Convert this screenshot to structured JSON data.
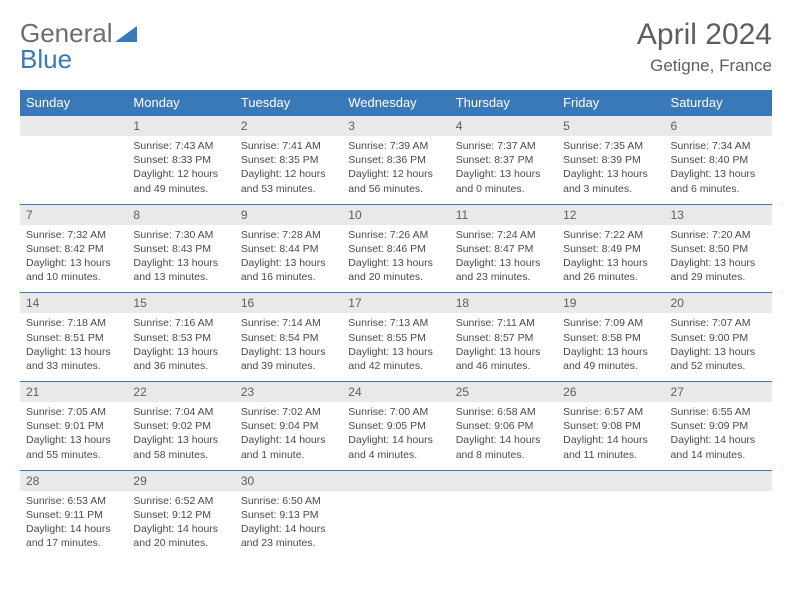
{
  "logo": {
    "part1": "General",
    "part2": "Blue"
  },
  "title": "April 2024",
  "location": "Getigne, France",
  "colors": {
    "header_bg": "#3a79b7",
    "header_text": "#ffffff",
    "daynum_bg": "#e9e9e9",
    "daynum_border": "#3a79b7",
    "body_text": "#4a4a4a",
    "title_text": "#5e5e5e"
  },
  "weekdays": [
    "Sunday",
    "Monday",
    "Tuesday",
    "Wednesday",
    "Thursday",
    "Friday",
    "Saturday"
  ],
  "weeks": [
    [
      null,
      {
        "n": "1",
        "sr": "Sunrise: 7:43 AM",
        "ss": "Sunset: 8:33 PM",
        "dl": "Daylight: 12 hours and 49 minutes."
      },
      {
        "n": "2",
        "sr": "Sunrise: 7:41 AM",
        "ss": "Sunset: 8:35 PM",
        "dl": "Daylight: 12 hours and 53 minutes."
      },
      {
        "n": "3",
        "sr": "Sunrise: 7:39 AM",
        "ss": "Sunset: 8:36 PM",
        "dl": "Daylight: 12 hours and 56 minutes."
      },
      {
        "n": "4",
        "sr": "Sunrise: 7:37 AM",
        "ss": "Sunset: 8:37 PM",
        "dl": "Daylight: 13 hours and 0 minutes."
      },
      {
        "n": "5",
        "sr": "Sunrise: 7:35 AM",
        "ss": "Sunset: 8:39 PM",
        "dl": "Daylight: 13 hours and 3 minutes."
      },
      {
        "n": "6",
        "sr": "Sunrise: 7:34 AM",
        "ss": "Sunset: 8:40 PM",
        "dl": "Daylight: 13 hours and 6 minutes."
      }
    ],
    [
      {
        "n": "7",
        "sr": "Sunrise: 7:32 AM",
        "ss": "Sunset: 8:42 PM",
        "dl": "Daylight: 13 hours and 10 minutes."
      },
      {
        "n": "8",
        "sr": "Sunrise: 7:30 AM",
        "ss": "Sunset: 8:43 PM",
        "dl": "Daylight: 13 hours and 13 minutes."
      },
      {
        "n": "9",
        "sr": "Sunrise: 7:28 AM",
        "ss": "Sunset: 8:44 PM",
        "dl": "Daylight: 13 hours and 16 minutes."
      },
      {
        "n": "10",
        "sr": "Sunrise: 7:26 AM",
        "ss": "Sunset: 8:46 PM",
        "dl": "Daylight: 13 hours and 20 minutes."
      },
      {
        "n": "11",
        "sr": "Sunrise: 7:24 AM",
        "ss": "Sunset: 8:47 PM",
        "dl": "Daylight: 13 hours and 23 minutes."
      },
      {
        "n": "12",
        "sr": "Sunrise: 7:22 AM",
        "ss": "Sunset: 8:49 PM",
        "dl": "Daylight: 13 hours and 26 minutes."
      },
      {
        "n": "13",
        "sr": "Sunrise: 7:20 AM",
        "ss": "Sunset: 8:50 PM",
        "dl": "Daylight: 13 hours and 29 minutes."
      }
    ],
    [
      {
        "n": "14",
        "sr": "Sunrise: 7:18 AM",
        "ss": "Sunset: 8:51 PM",
        "dl": "Daylight: 13 hours and 33 minutes."
      },
      {
        "n": "15",
        "sr": "Sunrise: 7:16 AM",
        "ss": "Sunset: 8:53 PM",
        "dl": "Daylight: 13 hours and 36 minutes."
      },
      {
        "n": "16",
        "sr": "Sunrise: 7:14 AM",
        "ss": "Sunset: 8:54 PM",
        "dl": "Daylight: 13 hours and 39 minutes."
      },
      {
        "n": "17",
        "sr": "Sunrise: 7:13 AM",
        "ss": "Sunset: 8:55 PM",
        "dl": "Daylight: 13 hours and 42 minutes."
      },
      {
        "n": "18",
        "sr": "Sunrise: 7:11 AM",
        "ss": "Sunset: 8:57 PM",
        "dl": "Daylight: 13 hours and 46 minutes."
      },
      {
        "n": "19",
        "sr": "Sunrise: 7:09 AM",
        "ss": "Sunset: 8:58 PM",
        "dl": "Daylight: 13 hours and 49 minutes."
      },
      {
        "n": "20",
        "sr": "Sunrise: 7:07 AM",
        "ss": "Sunset: 9:00 PM",
        "dl": "Daylight: 13 hours and 52 minutes."
      }
    ],
    [
      {
        "n": "21",
        "sr": "Sunrise: 7:05 AM",
        "ss": "Sunset: 9:01 PM",
        "dl": "Daylight: 13 hours and 55 minutes."
      },
      {
        "n": "22",
        "sr": "Sunrise: 7:04 AM",
        "ss": "Sunset: 9:02 PM",
        "dl": "Daylight: 13 hours and 58 minutes."
      },
      {
        "n": "23",
        "sr": "Sunrise: 7:02 AM",
        "ss": "Sunset: 9:04 PM",
        "dl": "Daylight: 14 hours and 1 minute."
      },
      {
        "n": "24",
        "sr": "Sunrise: 7:00 AM",
        "ss": "Sunset: 9:05 PM",
        "dl": "Daylight: 14 hours and 4 minutes."
      },
      {
        "n": "25",
        "sr": "Sunrise: 6:58 AM",
        "ss": "Sunset: 9:06 PM",
        "dl": "Daylight: 14 hours and 8 minutes."
      },
      {
        "n": "26",
        "sr": "Sunrise: 6:57 AM",
        "ss": "Sunset: 9:08 PM",
        "dl": "Daylight: 14 hours and 11 minutes."
      },
      {
        "n": "27",
        "sr": "Sunrise: 6:55 AM",
        "ss": "Sunset: 9:09 PM",
        "dl": "Daylight: 14 hours and 14 minutes."
      }
    ],
    [
      {
        "n": "28",
        "sr": "Sunrise: 6:53 AM",
        "ss": "Sunset: 9:11 PM",
        "dl": "Daylight: 14 hours and 17 minutes."
      },
      {
        "n": "29",
        "sr": "Sunrise: 6:52 AM",
        "ss": "Sunset: 9:12 PM",
        "dl": "Daylight: 14 hours and 20 minutes."
      },
      {
        "n": "30",
        "sr": "Sunrise: 6:50 AM",
        "ss": "Sunset: 9:13 PM",
        "dl": "Daylight: 14 hours and 23 minutes."
      },
      null,
      null,
      null,
      null
    ]
  ]
}
